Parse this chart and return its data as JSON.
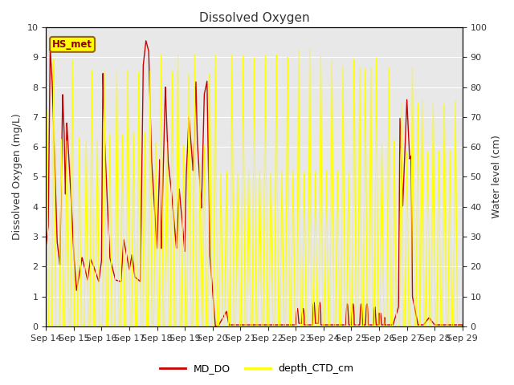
{
  "title": "Dissolved Oxygen",
  "ylabel_left": "Dissolved Oxygen (mg/L)",
  "ylabel_right": "Water level (cm)",
  "ylim_left": [
    0.0,
    10.0
  ],
  "ylim_right": [
    0,
    100
  ],
  "yticks_left": [
    0.0,
    1.0,
    2.0,
    3.0,
    4.0,
    5.0,
    6.0,
    7.0,
    8.0,
    9.0,
    10.0
  ],
  "yticks_right": [
    0,
    10,
    20,
    30,
    40,
    50,
    60,
    70,
    80,
    90,
    100
  ],
  "xticklabels": [
    "Sep 14",
    "Sep 15",
    "Sep 16",
    "Sep 17",
    "Sep 18",
    "Sep 19",
    "Sep 20",
    "Sep 21",
    "Sep 22",
    "Sep 23",
    "Sep 24",
    "Sep 25",
    "Sep 26",
    "Sep 27",
    "Sep 28",
    "Sep 29"
  ],
  "color_do": "#cc0000",
  "color_depth": "#ffff00",
  "legend_label_do": "MD_DO",
  "legend_label_depth": "depth_CTD_cm",
  "station_label": "HS_met",
  "station_box_color": "#ffff00",
  "station_box_edge": "#996600",
  "background_color": "#e8e8e8",
  "grid_color": "#ffffff",
  "title_fontsize": 11,
  "axis_label_fontsize": 9,
  "tick_fontsize": 8,
  "legend_fontsize": 9
}
